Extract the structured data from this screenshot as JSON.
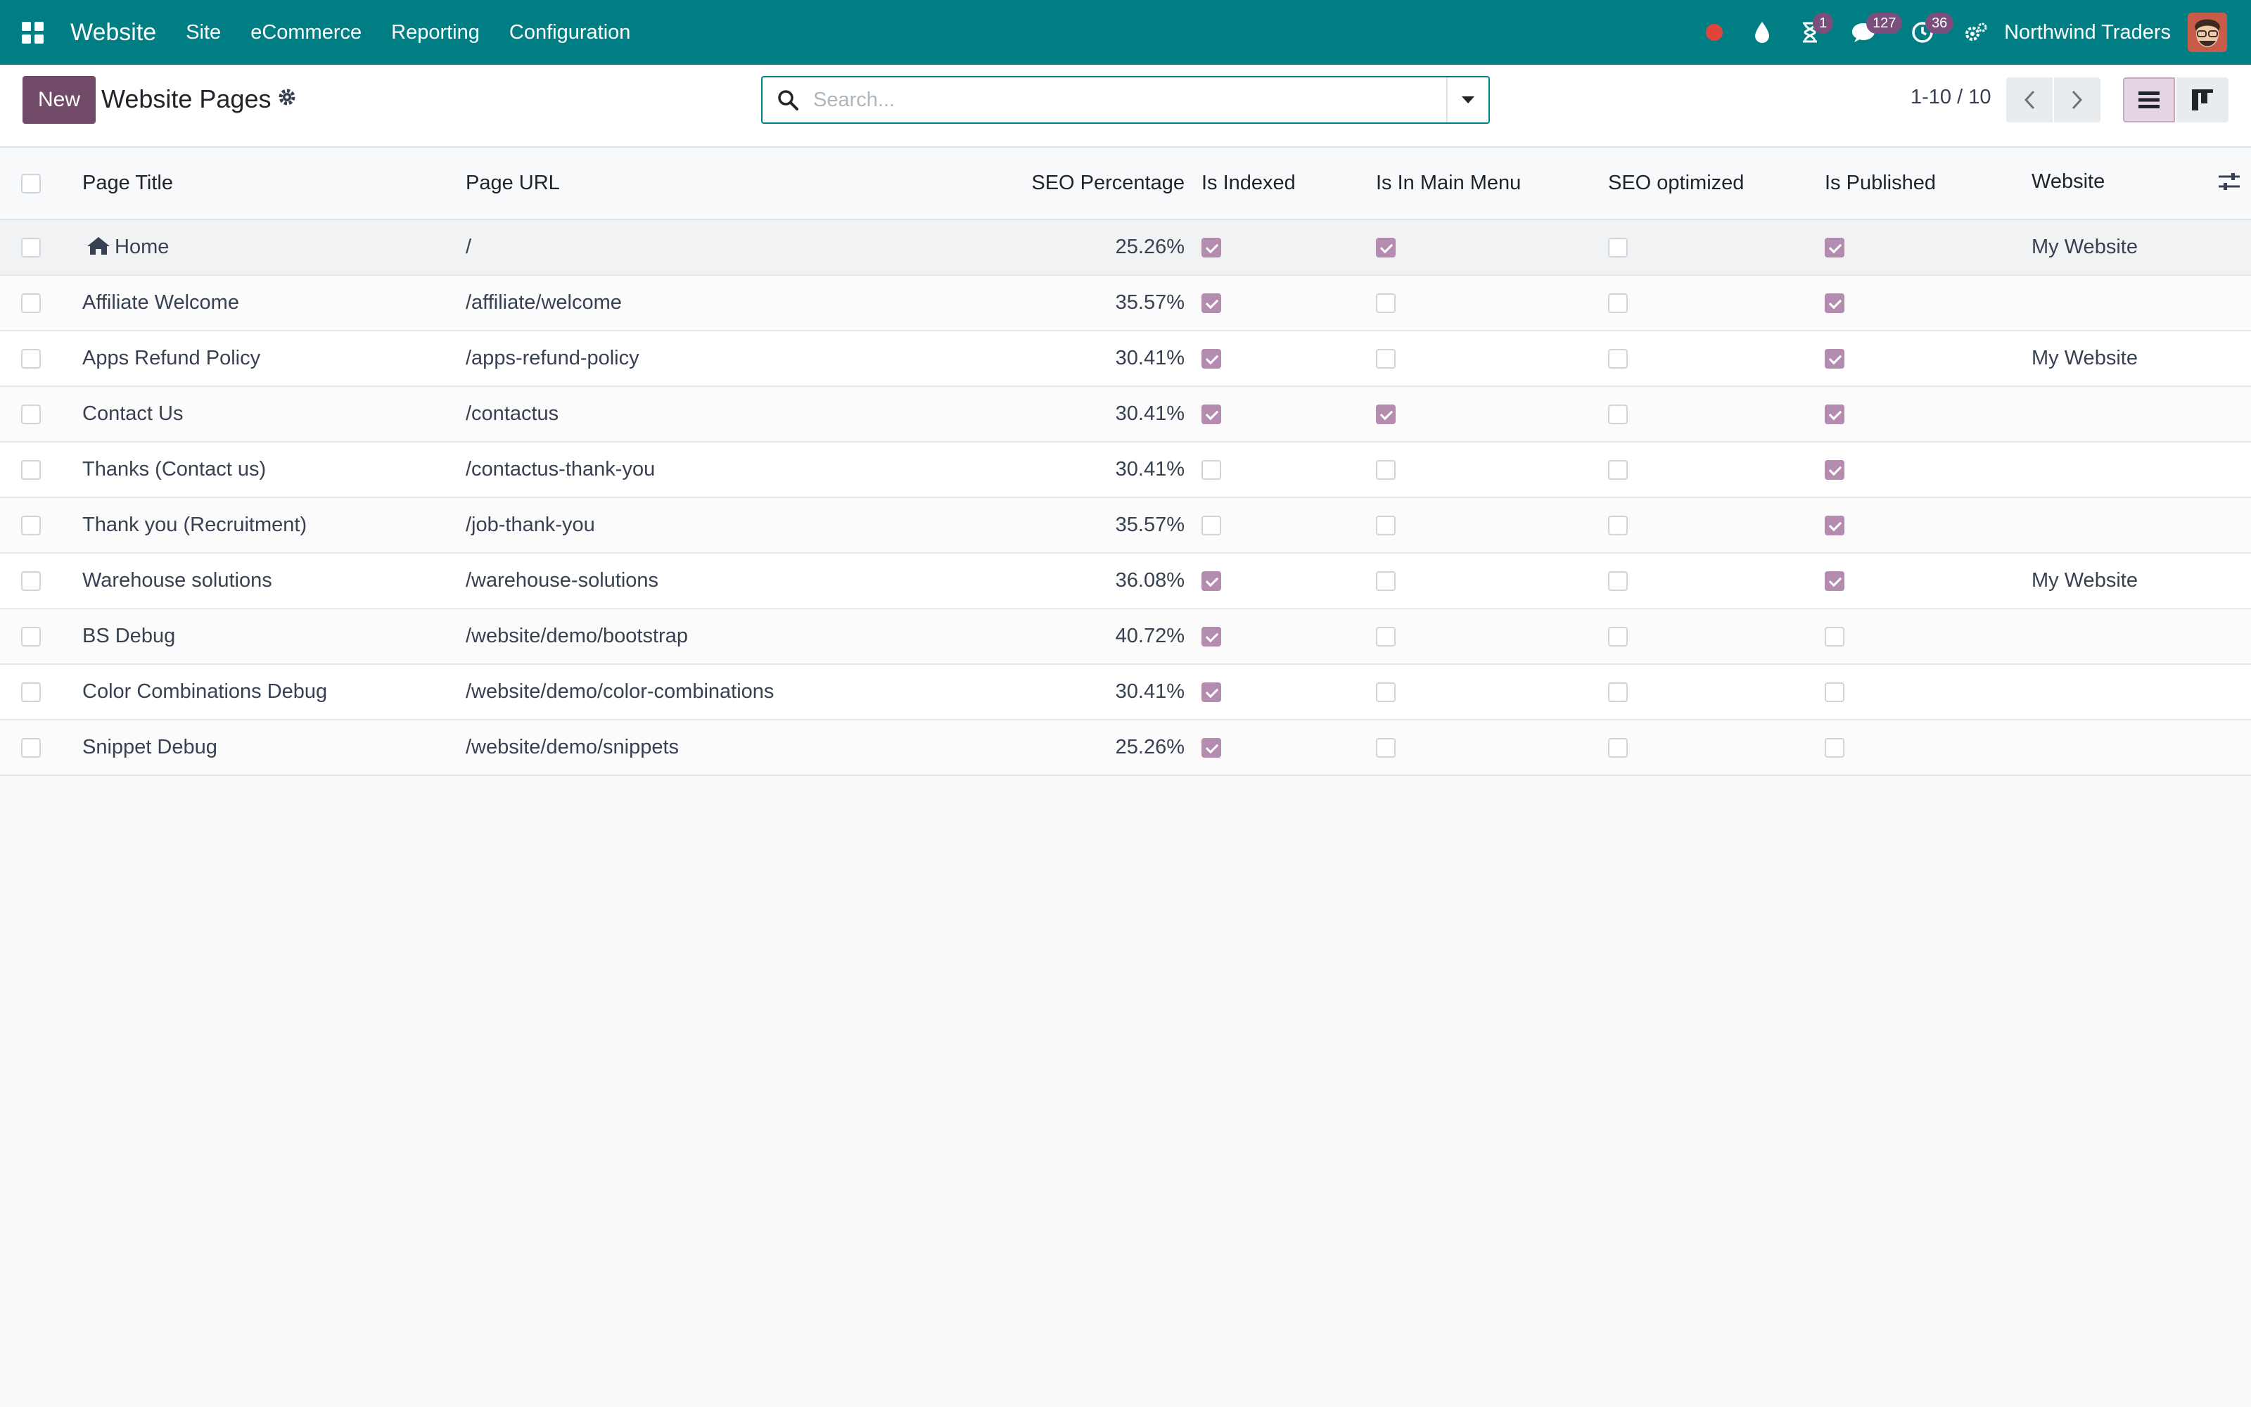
{
  "navbar": {
    "brand": "Website",
    "menu": [
      "Site",
      "eCommerce",
      "Reporting",
      "Configuration"
    ],
    "badges": {
      "activity": "1",
      "messages": "127",
      "clock": "36"
    },
    "company": "Northwind Traders"
  },
  "control": {
    "new_label": "New",
    "title": "Website Pages",
    "search_placeholder": "Search...",
    "pager": "1-10 / 10"
  },
  "table": {
    "headers": {
      "title": "Page Title",
      "url": "Page URL",
      "seo": "SEO Percentage",
      "indexed": "Is Indexed",
      "menu": "Is In Main Menu",
      "optimized": "SEO optimized",
      "published": "Is Published",
      "website": "Website"
    },
    "rows": [
      {
        "title": "Home",
        "url": "/",
        "seo": "25.26%",
        "indexed": true,
        "menu": true,
        "optimized": false,
        "published": true,
        "website": "My Website",
        "home": true
      },
      {
        "title": "Affiliate Welcome",
        "url": "/affiliate/welcome",
        "seo": "35.57%",
        "indexed": true,
        "menu": false,
        "optimized": false,
        "published": true,
        "website": ""
      },
      {
        "title": "Apps Refund Policy",
        "url": "/apps-refund-policy",
        "seo": "30.41%",
        "indexed": true,
        "menu": false,
        "optimized": false,
        "published": true,
        "website": "My Website"
      },
      {
        "title": "Contact Us",
        "url": "/contactus",
        "seo": "30.41%",
        "indexed": true,
        "menu": true,
        "optimized": false,
        "published": true,
        "website": ""
      },
      {
        "title": "Thanks (Contact us)",
        "url": "/contactus-thank-you",
        "seo": "30.41%",
        "indexed": false,
        "menu": false,
        "optimized": false,
        "published": true,
        "website": ""
      },
      {
        "title": "Thank you (Recruitment)",
        "url": "/job-thank-you",
        "seo": "35.57%",
        "indexed": false,
        "menu": false,
        "optimized": false,
        "published": true,
        "website": ""
      },
      {
        "title": "Warehouse solutions",
        "url": "/warehouse-solutions",
        "seo": "36.08%",
        "indexed": true,
        "menu": false,
        "optimized": false,
        "published": true,
        "website": "My Website"
      },
      {
        "title": "BS Debug",
        "url": "/website/demo/bootstrap",
        "seo": "40.72%",
        "indexed": true,
        "menu": false,
        "optimized": false,
        "published": false,
        "website": ""
      },
      {
        "title": "Color Combinations Debug",
        "url": "/website/demo/color-combinations",
        "seo": "30.41%",
        "indexed": true,
        "menu": false,
        "optimized": false,
        "published": false,
        "website": ""
      },
      {
        "title": "Snippet Debug",
        "url": "/website/demo/snippets",
        "seo": "25.26%",
        "indexed": true,
        "menu": false,
        "optimized": false,
        "published": false,
        "website": ""
      }
    ]
  },
  "colors": {
    "navbar": "#017e84",
    "primary": "#714b67",
    "checkbox_checked": "#b48cb0",
    "badge": "#7b4f7d",
    "record_dot": "#e0453b"
  },
  "icons": [
    "apps-grid-icon",
    "record-dot-icon",
    "drop-icon",
    "hourglass-icon",
    "chat-icon",
    "clock-icon",
    "settings-icon",
    "gear-icon",
    "search-icon",
    "caret-down-icon",
    "chevron-left-icon",
    "chevron-right-icon",
    "list-view-icon",
    "kanban-view-icon",
    "home-icon",
    "sliders-icon"
  ]
}
